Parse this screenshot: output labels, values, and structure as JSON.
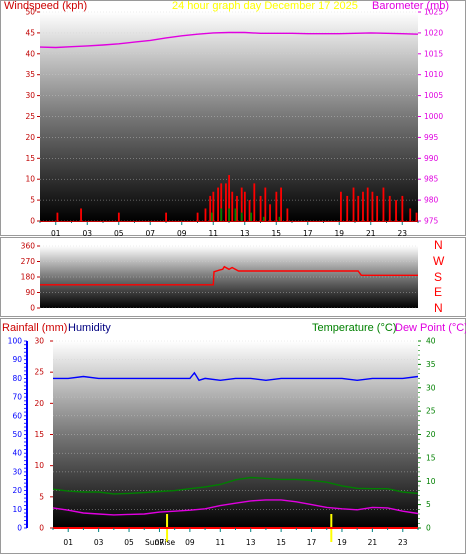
{
  "header": {
    "wind_label": "Windspeed (kph)",
    "title": "24 hour graph day   December 17 2025",
    "baro_label": "Barometer (mb)"
  },
  "middle": {
    "compass": [
      "N",
      "W",
      "S",
      "E",
      "N"
    ]
  },
  "bottom": {
    "rain_label": "Rainfall (mm)",
    "hum_label": "Humidity",
    "temp_label": "Temperature (°C)",
    "dew_label": "Dew Point (°C)",
    "sunrise_label": "SunRise"
  },
  "colors": {
    "wind": "#ff0000",
    "gust": "#008000",
    "barometer": "#e000e0",
    "direction": "#ff0000",
    "rain": "#ff0000",
    "humidity": "#0000ff",
    "temperature": "#008000",
    "dewpoint": "#e000e0",
    "sun_marker": "#ffff00",
    "tick_green": "#008080",
    "tick_blue": "#0000ff",
    "tick_red": "#c00000"
  },
  "chart_data": [
    {
      "type": "line",
      "id": "wind_baro",
      "x_ticks": [
        "01",
        "03",
        "05",
        "07",
        "09",
        "11",
        "13",
        "15",
        "17",
        "19",
        "21",
        "23"
      ],
      "left_axis": {
        "label": "Windspeed (kph)",
        "ticks": [
          0,
          5,
          10,
          15,
          20,
          25,
          30,
          35,
          40,
          45,
          50
        ],
        "ylim": [
          0,
          50
        ]
      },
      "right_axis": {
        "label": "Barometer (mb)",
        "ticks": [
          975,
          980,
          985,
          990,
          995,
          1000,
          1005,
          1010,
          1015,
          1020,
          1025
        ],
        "ylim": [
          975,
          1025
        ]
      },
      "series": [
        {
          "name": "Barometer (mb)",
          "axis": "right",
          "x": [
            0,
            1,
            2,
            3,
            4,
            5,
            6,
            7,
            8,
            9,
            10,
            11,
            12,
            13,
            14,
            15,
            16,
            17,
            18,
            19,
            20,
            21,
            22,
            23,
            24
          ],
          "y": [
            1016.6,
            1016.5,
            1016.7,
            1016.9,
            1017.1,
            1017.4,
            1017.8,
            1018.2,
            1018.8,
            1019.3,
            1019.7,
            1020.0,
            1020.1,
            1020.1,
            1019.9,
            1019.9,
            1019.9,
            1019.8,
            1019.8,
            1019.8,
            1019.9,
            1020.0,
            1019.9,
            1019.8,
            1019.7
          ]
        },
        {
          "name": "Windspeed (kph)",
          "axis": "left",
          "style": "bars",
          "x": [
            1.1,
            2.6,
            5.0,
            8.0,
            10.0,
            10.5,
            10.8,
            11.0,
            11.3,
            11.5,
            11.8,
            12.0,
            12.2,
            12.5,
            12.8,
            13.0,
            13.3,
            13.6,
            14.0,
            14.3,
            14.6,
            15.0,
            15.3,
            15.7,
            19.1,
            19.5,
            19.9,
            20.2,
            20.5,
            20.8,
            21.1,
            21.4,
            21.8,
            22.2,
            22.6,
            23.0,
            23.5,
            23.9
          ],
          "y": [
            2,
            3,
            2,
            2,
            2,
            3,
            6,
            7,
            8,
            9,
            9,
            11,
            7,
            6,
            8,
            7,
            5,
            9,
            6,
            8,
            4,
            7,
            8,
            3,
            7,
            6,
            8,
            6,
            7,
            8,
            7,
            6,
            8,
            6,
            5,
            6,
            3,
            2
          ]
        },
        {
          "name": "Gust (kph)",
          "axis": "left",
          "style": "bars",
          "x": [
            10.9,
            11.5,
            12.0,
            12.4,
            12.8,
            13.4,
            14.2,
            15.2
          ],
          "y": [
            2,
            3,
            3,
            3,
            2,
            2,
            1,
            1
          ]
        }
      ]
    },
    {
      "type": "line",
      "id": "direction",
      "left_axis": {
        "ticks": [
          0,
          90,
          180,
          270,
          360
        ],
        "ylim": [
          0,
          360
        ]
      },
      "right_axis": {
        "ticks": [
          "N",
          "W",
          "S",
          "E",
          "N"
        ]
      },
      "series": [
        {
          "name": "Wind Direction",
          "x": [
            0,
            11.0,
            11.05,
            11.4,
            11.6,
            11.7,
            12.0,
            12.2,
            12.6,
            17.5,
            20.2,
            20.4,
            24
          ],
          "y": [
            135,
            135,
            210,
            220,
            225,
            240,
            225,
            235,
            215,
            215,
            215,
            190,
            190
          ]
        }
      ]
    },
    {
      "type": "line",
      "id": "rain_hum_temp",
      "x_ticks": [
        "01",
        "03",
        "05",
        "07",
        "09",
        "11",
        "13",
        "15",
        "17",
        "19",
        "21",
        "23"
      ],
      "left_outer_axis": {
        "label": "Humidity",
        "ticks": [
          0,
          10,
          20,
          30,
          40,
          50,
          60,
          70,
          80,
          90,
          100
        ],
        "ylim": [
          0,
          100
        ]
      },
      "left_inner_axis": {
        "label": "Rainfall (mm)",
        "ticks": [
          0,
          5,
          10,
          15,
          20,
          25,
          30
        ],
        "ylim": [
          0,
          30
        ]
      },
      "right_axis": {
        "label": "Temperature (°C)",
        "ticks": [
          0,
          5,
          10,
          15,
          20,
          25,
          30,
          35,
          40
        ],
        "ylim": [
          0,
          40
        ]
      },
      "sunrise": {
        "label": "SunRise",
        "x": 7.5
      },
      "sunset": {
        "x": 18.3
      },
      "series": [
        {
          "name": "Humidity",
          "axis": "left_outer",
          "x": [
            0,
            1,
            2,
            3,
            4,
            5,
            6,
            7,
            8,
            9,
            9.3,
            9.6,
            10,
            11,
            12,
            13,
            14,
            15,
            16,
            17,
            18,
            19,
            20,
            21,
            22,
            23,
            24
          ],
          "y": [
            80,
            80,
            81,
            80,
            80,
            80,
            80,
            80,
            80,
            80,
            83,
            79,
            80,
            79,
            80,
            80,
            79,
            80,
            80,
            80,
            80,
            80,
            79,
            80,
            80,
            80,
            81
          ]
        },
        {
          "name": "Temperature (°C)",
          "axis": "right",
          "x": [
            0,
            1,
            2,
            3,
            4,
            5,
            6,
            7,
            8,
            9,
            10,
            11,
            12,
            13,
            14,
            15,
            16,
            17,
            18,
            19,
            20,
            21,
            22,
            23,
            24
          ],
          "y": [
            8.3,
            7.9,
            7.7,
            7.7,
            7.3,
            7.4,
            7.6,
            7.8,
            8.0,
            8.4,
            8.8,
            9.3,
            10.3,
            10.8,
            10.6,
            10.4,
            10.4,
            10.2,
            9.8,
            9.0,
            8.5,
            8.4,
            8.4,
            7.7,
            7.4
          ]
        },
        {
          "name": "Dew Point (°C)",
          "axis": "right",
          "x": [
            0,
            1,
            2,
            3,
            4,
            5,
            6,
            7,
            8,
            9,
            10,
            11,
            12,
            13,
            14,
            15,
            16,
            17,
            18,
            19,
            20,
            21,
            22,
            23,
            24
          ],
          "y": [
            4.3,
            3.8,
            3.2,
            3.0,
            2.8,
            2.9,
            3.0,
            3.4,
            3.6,
            3.8,
            4.1,
            4.8,
            5.3,
            5.8,
            6.0,
            6.0,
            5.6,
            5.0,
            4.4,
            4.1,
            3.9,
            4.4,
            4.3,
            3.6,
            3.1
          ]
        },
        {
          "name": "Rainfall (mm)",
          "axis": "left_inner",
          "x": [
            0,
            24
          ],
          "y": [
            0,
            0
          ]
        }
      ]
    }
  ]
}
